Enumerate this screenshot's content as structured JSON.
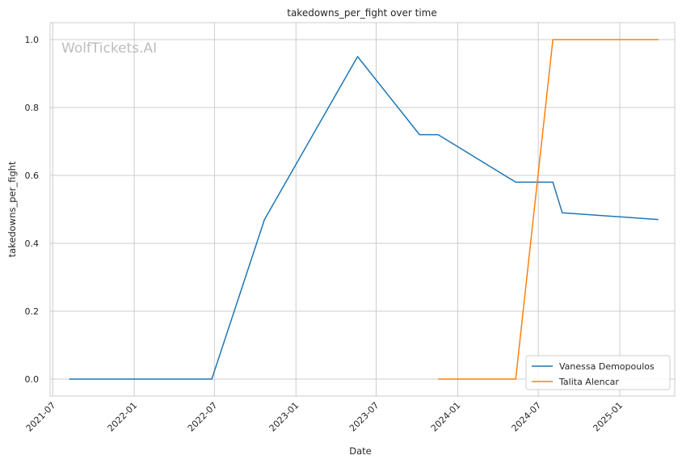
{
  "chart_data": {
    "type": "line",
    "title": "takedowns_per_fight over time",
    "xlabel": "Date",
    "ylabel": "takedowns_per_fight",
    "watermark": "WolfTickets.AI",
    "xlim": [
      "2021-06-25",
      "2025-05-05"
    ],
    "ylim": [
      -0.05,
      1.05
    ],
    "x_ticks": [
      "2021-07-01",
      "2022-01-01",
      "2022-07-01",
      "2023-01-01",
      "2023-07-01",
      "2024-01-01",
      "2024-07-01",
      "2025-01-01"
    ],
    "x_tick_labels": [
      "2021-07",
      "2022-01",
      "2022-07",
      "2023-01",
      "2023-07",
      "2024-01",
      "2024-07",
      "2025-01"
    ],
    "y_ticks": [
      0.0,
      0.2,
      0.4,
      0.6,
      0.8,
      1.0
    ],
    "y_tick_labels": [
      "0.0",
      "0.2",
      "0.4",
      "0.6",
      "0.8",
      "1.0"
    ],
    "grid": true,
    "legend_position": "bottom-right",
    "series": [
      {
        "name": "Vanessa Demopoulos",
        "color": "#1f77b4",
        "x": [
          "2021-08-07",
          "2022-06-25",
          "2022-10-22",
          "2023-05-20",
          "2023-10-07",
          "2023-11-18",
          "2024-05-11",
          "2024-08-03",
          "2024-08-24",
          "2025-03-29"
        ],
        "y": [
          0.0,
          0.0,
          0.47,
          0.95,
          0.72,
          0.72,
          0.58,
          0.58,
          0.49,
          0.47
        ]
      },
      {
        "name": "Talita Alencar",
        "color": "#ff7f0e",
        "x": [
          "2023-11-18",
          "2024-05-11",
          "2024-08-03",
          "2025-03-29"
        ],
        "y": [
          0.0,
          0.0,
          1.0,
          1.0
        ]
      }
    ]
  }
}
